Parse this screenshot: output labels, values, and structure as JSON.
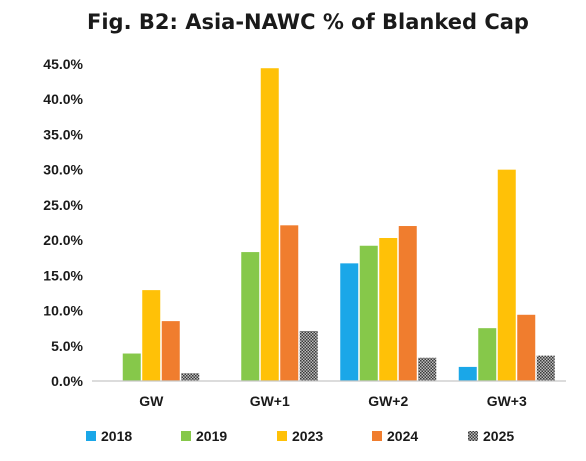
{
  "chart_data": {
    "type": "bar",
    "title": "Fig. B2: Asia-NAWC % of Blanked Cap",
    "xlabel": "",
    "ylabel": "",
    "categories": [
      "GW",
      "GW+1",
      "GW+2",
      "GW+3"
    ],
    "ylim": [
      0,
      45
    ],
    "yticks": [
      "0.0%",
      "5.0%",
      "10.0%",
      "15.0%",
      "20.0%",
      "25.0%",
      "30.0%",
      "35.0%",
      "40.0%",
      "45.0%"
    ],
    "grid": false,
    "legend_position": "bottom",
    "series": [
      {
        "name": "2018",
        "color": "#1aa7e8",
        "pattern": "solid",
        "values": [
          0,
          0,
          16.7,
          2.0
        ]
      },
      {
        "name": "2019",
        "color": "#86c84a",
        "pattern": "solid",
        "values": [
          3.9,
          18.3,
          19.2,
          7.5
        ]
      },
      {
        "name": "2023",
        "color": "#ffc107",
        "pattern": "solid",
        "values": [
          12.9,
          44.4,
          20.3,
          30.0
        ]
      },
      {
        "name": "2024",
        "color": "#f07d2e",
        "pattern": "solid",
        "values": [
          8.5,
          22.1,
          22.0,
          9.4
        ]
      },
      {
        "name": "2025",
        "color": "#555555",
        "pattern": "hatched",
        "values": [
          1.1,
          7.1,
          3.3,
          3.6
        ]
      }
    ]
  }
}
